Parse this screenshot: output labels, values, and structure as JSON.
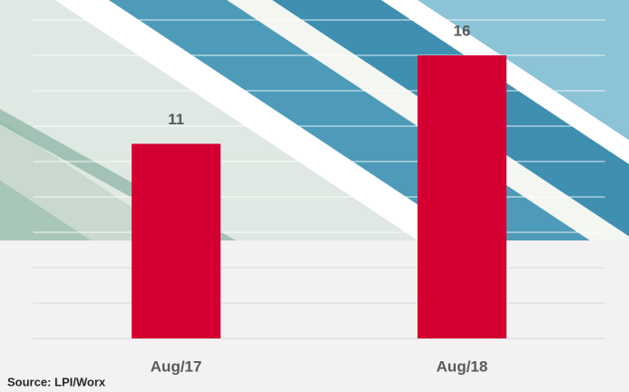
{
  "chart_data": {
    "type": "bar",
    "categories": [
      "Aug/17",
      "Aug/18"
    ],
    "values": [
      11,
      16
    ],
    "color": "#d50032",
    "ylim": [
      0,
      18
    ],
    "yticks": [
      0,
      2,
      4,
      6,
      8,
      10,
      12,
      14,
      16,
      18
    ],
    "grid": true,
    "source": "Source: LPI/Worx"
  }
}
